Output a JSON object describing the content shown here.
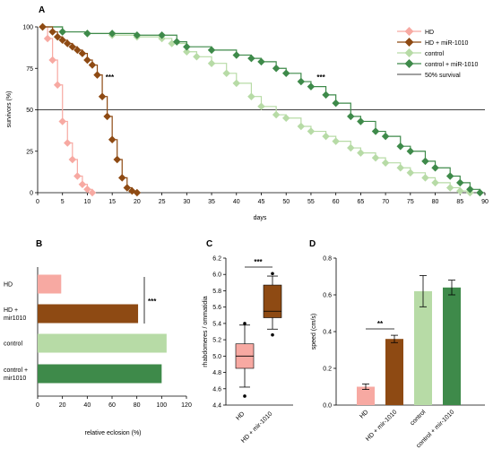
{
  "colors": {
    "hd": "#f7a9a2",
    "hd_mir": "#8e4a13",
    "control": "#b7dba6",
    "control_mir": "#3e8a4a",
    "axis": "#000000"
  },
  "chart_data": [
    {
      "panel": "A",
      "type": "line",
      "xlabel": "days",
      "ylabel": "survivors (%)",
      "xlim": [
        0,
        90
      ],
      "ylim": [
        0,
        100
      ],
      "xticks": [
        "0",
        "5",
        "10",
        "15",
        "20",
        "25",
        "30",
        "35",
        "40",
        "45",
        "50",
        "55",
        "60",
        "65",
        "70",
        "75",
        "80",
        "85",
        "90"
      ],
      "yticks": [
        "0",
        "25",
        "50",
        "75",
        "100"
      ],
      "reference_line": {
        "label": "50% survival",
        "y": 50
      },
      "legend": [
        "HD",
        "HD + miR-1010",
        "control",
        "control + miR-1010",
        "50% survival"
      ],
      "legend_position": "top-right",
      "annotations": [
        {
          "text": "***",
          "x": 14.5,
          "y": 68
        },
        {
          "text": "***",
          "x": 57,
          "y": 68
        }
      ],
      "series": [
        {
          "name": "HD",
          "x": [
            1,
            2,
            3,
            4,
            5,
            6,
            7,
            8,
            9,
            10,
            11
          ],
          "y": [
            100,
            93,
            80,
            65,
            43,
            30,
            20,
            10,
            5,
            2,
            0
          ]
        },
        {
          "name": "HD + miR-1010",
          "x": [
            1,
            3,
            4,
            5,
            6,
            7,
            8,
            9,
            10,
            11,
            12,
            13,
            14,
            15,
            16,
            17,
            18,
            19,
            20
          ],
          "y": [
            100,
            97,
            94,
            92,
            90,
            88,
            86,
            84,
            80,
            77,
            71,
            58,
            46,
            32,
            20,
            9,
            3,
            1,
            0
          ]
        },
        {
          "name": "control",
          "x": [
            1,
            5,
            10,
            15,
            20,
            25,
            27,
            30,
            32,
            35,
            38,
            40,
            43,
            45,
            48,
            50,
            53,
            55,
            58,
            60,
            63,
            65,
            68,
            70,
            73,
            75,
            78,
            80,
            83,
            85,
            87
          ],
          "y": [
            100,
            97,
            96,
            95,
            94,
            93,
            90,
            85,
            82,
            78,
            72,
            66,
            58,
            52,
            47,
            45,
            40,
            37,
            34,
            31,
            27,
            24,
            21,
            18,
            15,
            12,
            9,
            6,
            3,
            1,
            0
          ]
        },
        {
          "name": "control + miR-1010",
          "x": [
            1,
            5,
            10,
            15,
            20,
            25,
            28,
            30,
            35,
            40,
            43,
            45,
            48,
            50,
            53,
            55,
            58,
            60,
            63,
            65,
            68,
            70,
            73,
            75,
            78,
            80,
            83,
            85,
            87,
            89
          ],
          "y": [
            100,
            97,
            96,
            96,
            95,
            95,
            91,
            88,
            86,
            83,
            81,
            79,
            75,
            72,
            67,
            64,
            59,
            54,
            46,
            43,
            37,
            34,
            28,
            25,
            19,
            15,
            10,
            6,
            2,
            0
          ]
        }
      ]
    },
    {
      "panel": "B",
      "type": "bar",
      "orientation": "horizontal",
      "categories": [
        "HD",
        "HD + mir1010",
        "control",
        "control + mir1010"
      ],
      "values": [
        19,
        81,
        104,
        100
      ],
      "xlabel": "relative eclosion (%)",
      "xlim": [
        0,
        120
      ],
      "xticks": [
        "0",
        "20",
        "40",
        "60",
        "80",
        "100",
        "120"
      ],
      "annotations": [
        {
          "text": "***"
        }
      ]
    },
    {
      "panel": "C",
      "type": "box",
      "categories": [
        "HD",
        "HD + mir-1010"
      ],
      "ylabel": "rhabdomeres / ommatidia",
      "ylim": [
        4.4,
        6.2
      ],
      "yticks": [
        "4.4",
        "4.6",
        "4.8",
        "5.0",
        "5.2",
        "5.4",
        "5.6",
        "5.8",
        "6.0",
        "6.2"
      ],
      "boxes": [
        {
          "name": "HD",
          "min": 4.62,
          "q1": 4.85,
          "median": 5.0,
          "q3": 5.15,
          "max": 5.38,
          "outliers": [
            4.51,
            5.4
          ]
        },
        {
          "name": "HD + mir-1010",
          "min": 5.33,
          "q1": 5.47,
          "median": 5.55,
          "q3": 5.87,
          "max": 5.98,
          "outliers": [
            5.26,
            6.01
          ]
        }
      ],
      "annotations": [
        {
          "text": "***"
        }
      ]
    },
    {
      "panel": "D",
      "type": "bar",
      "categories": [
        "HD",
        "HD + mir-1010",
        "control",
        "control + mir-1010"
      ],
      "values": [
        0.1,
        0.36,
        0.62,
        0.64
      ],
      "errors": [
        0.015,
        0.02,
        0.085,
        0.04
      ],
      "ylabel": "speed (cm/s)",
      "ylim": [
        0,
        0.8
      ],
      "yticks": [
        "0.0",
        "0.2",
        "0.4",
        "0.6",
        "0.8"
      ],
      "annotations": [
        {
          "text": "**"
        }
      ]
    }
  ]
}
